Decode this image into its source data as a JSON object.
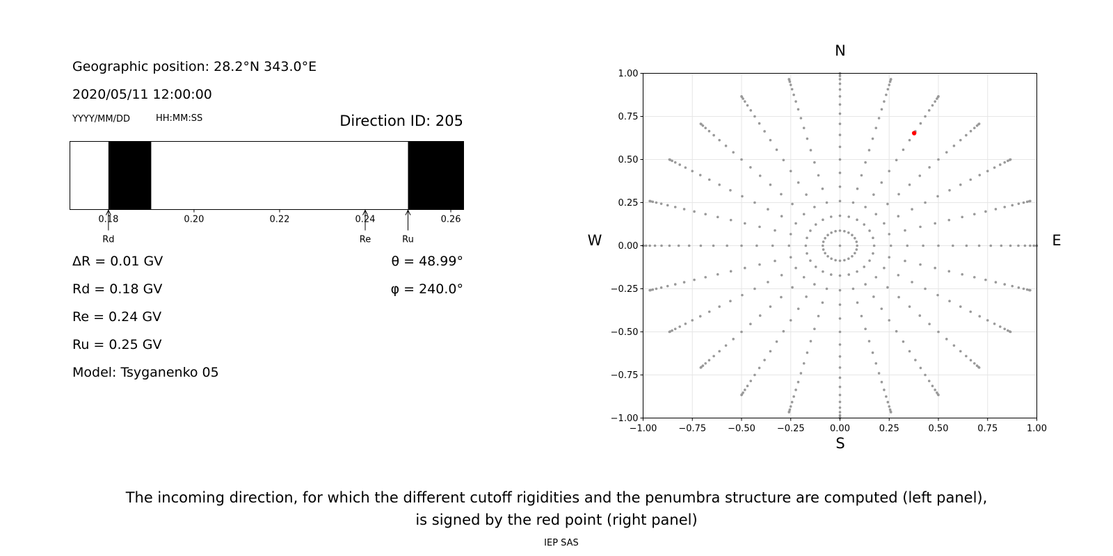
{
  "info": {
    "geo_position": "Geographic position: 28.2°N 343.0°E",
    "datetime": "2020/05/11 12:00:00",
    "date_format": "YYYY/MM/DD",
    "time_format": "HH:MM:SS",
    "direction_id": "Direction ID: 205",
    "delta_r": "ΔR = 0.01 GV",
    "rd": "Rd = 0.18 GV",
    "re": "Re = 0.24 GV",
    "ru": "Ru = 0.25 GV",
    "model": "Model: Tsyganenko 05",
    "theta": "θ = 48.99°",
    "phi": "φ = 240.0°"
  },
  "caption": {
    "line1": "The incoming direction, for which the different cutoff rigidities and the penumbra structure are computed (left panel),",
    "line2": "is signed by the red point (right panel)",
    "credit": "IEP SAS"
  },
  "chart_data": [
    {
      "type": "penumbra-bar",
      "xlim": [
        0.171,
        0.263
      ],
      "ticks": [
        0.18,
        0.2,
        0.22,
        0.24,
        0.26
      ],
      "tick_labels": [
        "0.18",
        "0.20",
        "0.22",
        "0.24",
        "0.26"
      ],
      "forbidden_bands": [
        [
          0.18,
          0.19
        ],
        [
          0.25,
          0.263
        ]
      ],
      "markers": [
        {
          "name": "Rd",
          "value": 0.18
        },
        {
          "name": "Re",
          "value": 0.24
        },
        {
          "name": "Ru",
          "value": 0.25
        }
      ]
    },
    {
      "type": "scatter",
      "xlim": [
        -1.0,
        1.0
      ],
      "ylim": [
        -1.0,
        1.0
      ],
      "xticks": [
        -1.0,
        -0.75,
        -0.5,
        -0.25,
        0.0,
        0.25,
        0.5,
        0.75,
        1.0
      ],
      "yticks": [
        -1.0,
        -0.75,
        -0.5,
        -0.25,
        0.0,
        0.25,
        0.5,
        0.75,
        1.0
      ],
      "xtick_labels": [
        "−1.00",
        "−0.75",
        "−0.50",
        "−0.25",
        "0.00",
        "0.25",
        "0.50",
        "0.75",
        "1.00"
      ],
      "ytick_labels": [
        "−1.00",
        "−0.75",
        "−0.50",
        "−0.25",
        "0.00",
        "0.25",
        "0.50",
        "0.75",
        "1.00"
      ],
      "directions": {
        "N": "N",
        "S": "S",
        "W": "W",
        "E": "E"
      },
      "grid": true,
      "grid_description": "asymptotic direction grid: 24 azimuths every 15°, zenith angles 0–90° every 5°, plotted as sin(zenith)",
      "azimuth_step_deg": 15,
      "zenith_step_deg": 5,
      "zenith_max_deg": 90,
      "point_color": "#999999",
      "highlight": {
        "x": 0.377,
        "y": 0.653,
        "color": "#ff0000"
      }
    }
  ]
}
